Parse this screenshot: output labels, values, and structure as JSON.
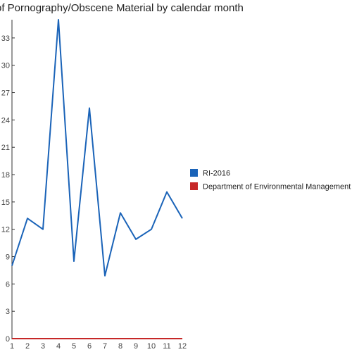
{
  "chart_data": {
    "type": "line",
    "title": "of Pornography/Obscene Material by calendar month",
    "xlabel": "",
    "ylabel": "",
    "categories": [
      "1",
      "2",
      "3",
      "4",
      "5",
      "6",
      "7",
      "8",
      "9",
      "10",
      "11",
      "12"
    ],
    "ylim": [
      0,
      35
    ],
    "yticks": [
      0,
      3,
      6,
      9,
      12,
      15,
      18,
      21,
      24,
      27,
      30,
      33
    ],
    "grid": false,
    "legend_position": "right",
    "series": [
      {
        "name": "RI-2016",
        "color": "#1a63b8",
        "values": [
          8,
          13.2,
          12,
          35,
          8.5,
          25.3,
          6.9,
          13.8,
          10.9,
          12,
          16.1,
          13.2
        ]
      },
      {
        "name": "Department of Environmental Management",
        "color": "#c62828",
        "values": [
          0,
          0,
          0,
          0,
          0,
          0,
          0,
          0,
          0,
          0,
          0,
          0
        ]
      }
    ]
  }
}
